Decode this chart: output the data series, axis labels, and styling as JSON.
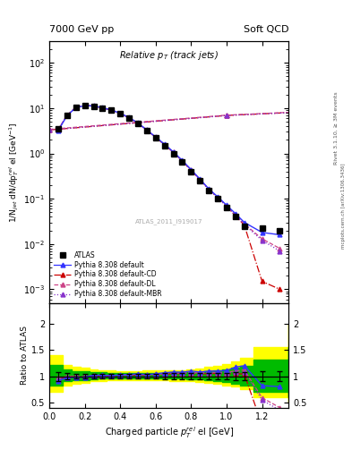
{
  "title_left": "7000 GeV pp",
  "title_right": "Soft QCD",
  "plot_title": "Relative p$_T$ (track jets)",
  "xlabel": "Charged particle $p_T^{rel}$ el [GeV]",
  "ylabel_main": "1/N$_{jet}$ dN/dp$_T^{rel}$ el [GeV$^{-1}$]",
  "ylabel_ratio": "Ratio to ATLAS",
  "right_label1": "Rivet 3.1.10, ≥ 3M events",
  "right_label2": "mcplots.cern.ch [arXiv:1306.3436]",
  "watermark": "ATLAS_2011_I919017",
  "xlim": [
    0.0,
    1.35
  ],
  "ylim_main": [
    0.0005,
    300
  ],
  "ylim_ratio": [
    0.4,
    2.4
  ],
  "ratio_yticks": [
    0.5,
    1.0,
    1.5,
    2.0
  ],
  "atlas_x": [
    0.05,
    0.1,
    0.15,
    0.2,
    0.25,
    0.3,
    0.35,
    0.4,
    0.45,
    0.5,
    0.55,
    0.6,
    0.65,
    0.7,
    0.75,
    0.8,
    0.85,
    0.9,
    0.95,
    1.0,
    1.05,
    1.1,
    1.2,
    1.3
  ],
  "atlas_y": [
    3.5,
    7.0,
    10.5,
    11.5,
    11.0,
    10.0,
    9.0,
    7.5,
    6.0,
    4.5,
    3.2,
    2.2,
    1.5,
    1.0,
    0.65,
    0.4,
    0.25,
    0.15,
    0.1,
    0.065,
    0.04,
    0.025,
    0.022,
    0.02
  ],
  "atlas_yerr": [
    0.3,
    0.4,
    0.5,
    0.5,
    0.5,
    0.45,
    0.4,
    0.35,
    0.28,
    0.22,
    0.16,
    0.11,
    0.08,
    0.055,
    0.035,
    0.022,
    0.014,
    0.009,
    0.006,
    0.004,
    0.003,
    0.002,
    0.002,
    0.002
  ],
  "py_x": [
    0.05,
    0.1,
    0.15,
    0.2,
    0.25,
    0.3,
    0.35,
    0.4,
    0.45,
    0.5,
    0.55,
    0.6,
    0.65,
    0.7,
    0.75,
    0.8,
    0.85,
    0.9,
    0.95,
    1.0,
    1.05,
    1.1,
    1.2,
    1.3
  ],
  "py_def_y": [
    3.2,
    6.8,
    10.3,
    11.3,
    11.2,
    10.2,
    9.1,
    7.7,
    6.2,
    4.7,
    3.3,
    2.3,
    1.6,
    1.08,
    0.7,
    0.44,
    0.27,
    0.165,
    0.11,
    0.072,
    0.047,
    0.03,
    0.018,
    0.016
  ],
  "py_CD_y": [
    3.3,
    6.9,
    10.4,
    11.4,
    11.1,
    10.1,
    9.05,
    7.6,
    6.1,
    4.6,
    3.25,
    2.25,
    1.55,
    1.05,
    0.68,
    0.42,
    0.26,
    0.158,
    0.105,
    0.068,
    0.042,
    0.026,
    0.0015,
    0.001
  ],
  "py_DL_y": [
    3.4,
    7.0,
    10.5,
    11.4,
    11.15,
    10.15,
    9.1,
    7.65,
    6.15,
    4.65,
    3.3,
    2.28,
    1.57,
    1.06,
    0.69,
    0.43,
    0.265,
    0.162,
    0.107,
    0.07,
    0.044,
    0.028,
    0.013,
    0.008
  ],
  "py_MBR_y": [
    3.3,
    6.85,
    10.35,
    11.35,
    11.1,
    10.1,
    9.05,
    7.62,
    6.12,
    4.62,
    3.27,
    2.26,
    1.56,
    1.055,
    0.685,
    0.425,
    0.263,
    0.16,
    0.106,
    0.069,
    0.043,
    0.027,
    0.012,
    0.007
  ],
  "color_atlas": "#000000",
  "color_def": "#3333ff",
  "color_CD": "#cc0000",
  "color_DL": "#cc4488",
  "color_MBR": "#8833cc",
  "col_yellow": "#ffff00",
  "col_green": "#00bb00",
  "r_def_y": [
    0.914,
    0.971,
    0.981,
    0.983,
    1.018,
    1.02,
    1.011,
    1.027,
    1.033,
    1.044,
    1.031,
    1.045,
    1.067,
    1.08,
    1.077,
    1.1,
    1.08,
    1.1,
    1.1,
    1.108,
    1.175,
    1.2,
    0.82,
    0.8
  ],
  "r_CD_y": [
    0.943,
    0.986,
    0.99,
    0.991,
    1.009,
    1.01,
    1.006,
    1.013,
    1.017,
    1.022,
    1.016,
    1.023,
    1.033,
    1.05,
    1.046,
    1.05,
    1.04,
    1.053,
    1.05,
    1.046,
    1.05,
    1.04,
    0.068,
    0.05
  ],
  "r_DL_y": [
    0.971,
    1.0,
    1.0,
    0.991,
    1.014,
    1.015,
    1.011,
    1.02,
    1.025,
    1.033,
    1.031,
    1.036,
    1.047,
    1.06,
    1.062,
    1.075,
    1.06,
    1.08,
    1.07,
    1.077,
    1.1,
    1.12,
    0.59,
    0.4
  ],
  "r_MBR_y": [
    0.943,
    0.979,
    0.986,
    0.987,
    1.009,
    1.01,
    1.006,
    1.016,
    1.02,
    1.027,
    1.022,
    1.027,
    1.04,
    1.055,
    1.054,
    1.063,
    1.052,
    1.067,
    1.06,
    1.062,
    1.075,
    1.08,
    0.545,
    0.35
  ],
  "band_x": [
    0.0,
    0.075,
    0.125,
    0.175,
    0.225,
    0.275,
    0.325,
    0.375,
    0.425,
    0.475,
    0.525,
    0.575,
    0.625,
    0.675,
    0.725,
    0.775,
    0.825,
    0.875,
    0.925,
    0.975,
    1.025,
    1.075,
    1.15,
    1.35
  ],
  "yel_lo": [
    0.7,
    0.82,
    0.86,
    0.88,
    0.9,
    0.91,
    0.92,
    0.93,
    0.93,
    0.93,
    0.92,
    0.92,
    0.92,
    0.91,
    0.91,
    0.9,
    0.89,
    0.87,
    0.85,
    0.83,
    0.8,
    0.75,
    0.6,
    0.5
  ],
  "yel_hi": [
    1.4,
    1.22,
    1.18,
    1.16,
    1.13,
    1.12,
    1.11,
    1.1,
    1.1,
    1.1,
    1.11,
    1.11,
    1.11,
    1.12,
    1.12,
    1.13,
    1.15,
    1.18,
    1.2,
    1.23,
    1.28,
    1.35,
    1.55,
    2.0
  ],
  "grn_lo": [
    0.82,
    0.9,
    0.92,
    0.93,
    0.94,
    0.95,
    0.955,
    0.96,
    0.96,
    0.96,
    0.955,
    0.955,
    0.955,
    0.95,
    0.95,
    0.945,
    0.935,
    0.92,
    0.905,
    0.885,
    0.86,
    0.82,
    0.7,
    0.6
  ],
  "grn_hi": [
    1.22,
    1.13,
    1.1,
    1.09,
    1.08,
    1.07,
    1.065,
    1.06,
    1.06,
    1.06,
    1.065,
    1.065,
    1.065,
    1.07,
    1.07,
    1.075,
    1.085,
    1.1,
    1.115,
    1.135,
    1.16,
    1.2,
    1.32,
    1.55
  ]
}
